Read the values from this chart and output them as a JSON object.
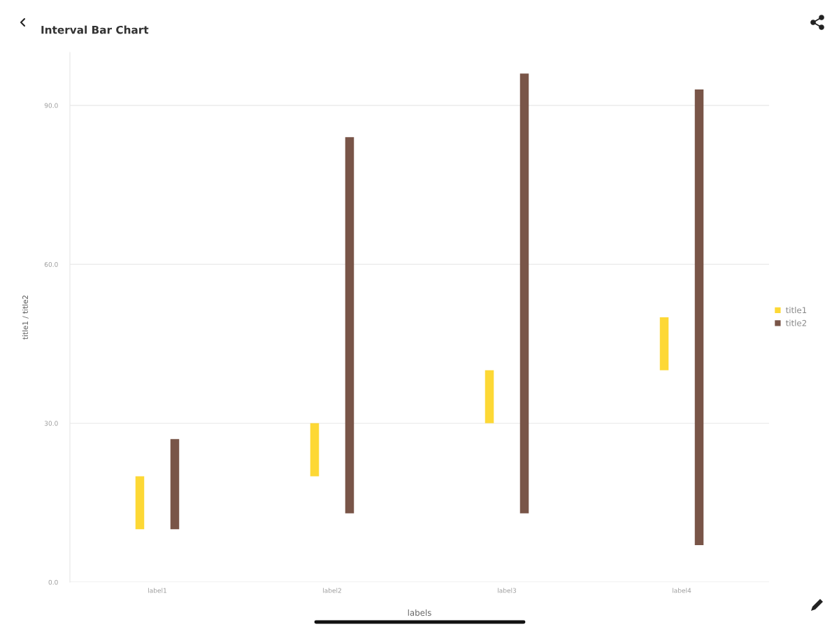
{
  "chart_data": {
    "type": "bar",
    "title": "Interval Bar Chart",
    "xlabel": "labels",
    "ylabel": "title1 / title2",
    "categories": [
      "label1",
      "label2",
      "label3",
      "label4"
    ],
    "series": [
      {
        "name": "title1",
        "color": "#fdd835",
        "values": [
          10,
          10,
          10,
          10
        ],
        "base": [
          10,
          20,
          30,
          40
        ]
      },
      {
        "name": "title2",
        "color": "#795548",
        "values": [
          17,
          71,
          83,
          86
        ],
        "base": [
          10,
          13,
          13,
          7
        ]
      }
    ],
    "ylim": [
      0,
      100
    ],
    "yticks": [
      {
        "value": 0,
        "label": "0.0"
      },
      {
        "value": 30,
        "label": "30.0"
      },
      {
        "value": 60,
        "label": "60.0"
      },
      {
        "value": 90,
        "label": "90.0"
      }
    ],
    "grid": "y",
    "legend": "right"
  }
}
